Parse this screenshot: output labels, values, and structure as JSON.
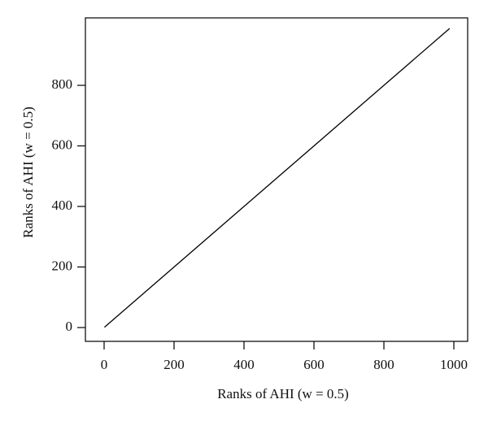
{
  "chart_data": {
    "type": "line",
    "xlabel": "Ranks of AHI (w = 0.5)",
    "ylabel": "Ranks of AHI (w = 0.5)",
    "x": [
      1,
      988
    ],
    "series": [
      {
        "color": "#000000",
        "values": [
          1,
          988
        ]
      }
    ],
    "xlim": [
      -53.5,
      1039.5
    ],
    "ylim": [
      -45.6,
      1022.8
    ],
    "xticks": [
      0,
      200,
      400,
      600,
      800,
      1000
    ],
    "yticks": [
      0,
      200,
      400,
      600,
      800
    ]
  }
}
